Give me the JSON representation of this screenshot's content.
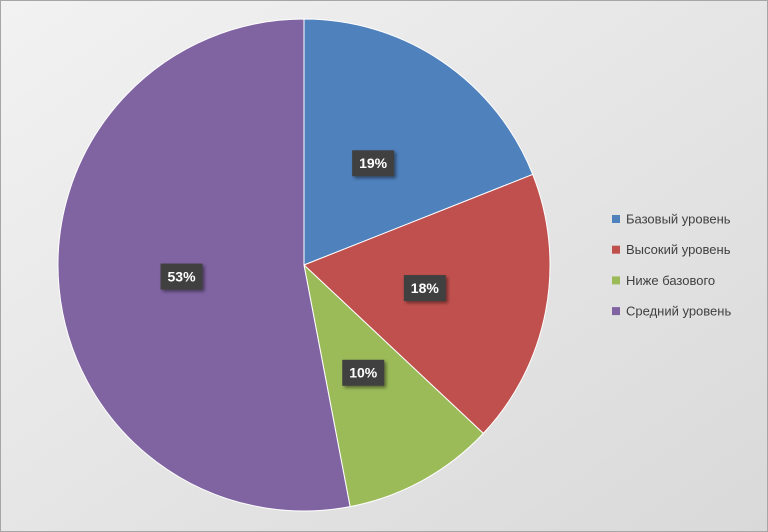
{
  "chart_data": {
    "type": "pie",
    "categories": [
      "Базовый уровень",
      "Высокий уровень",
      "Ниже базового",
      "Средний уровень"
    ],
    "values": [
      19,
      18,
      10,
      53
    ],
    "value_labels": [
      "19%",
      "18%",
      "10%",
      "53%"
    ],
    "colors": [
      "#4f81bd",
      "#c0504d",
      "#9bbb59",
      "#8064a2"
    ],
    "legend": "right"
  }
}
